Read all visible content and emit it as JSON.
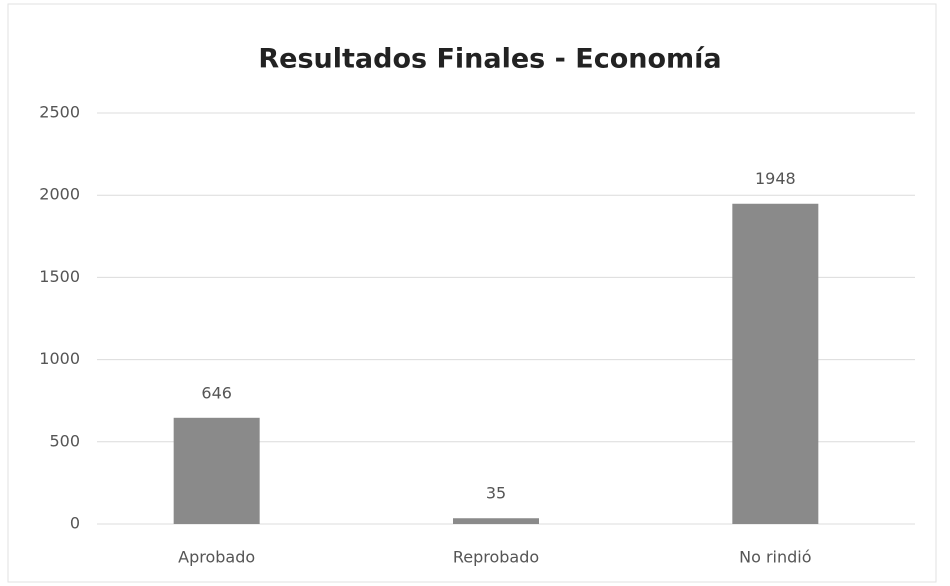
{
  "chart_data": {
    "type": "bar",
    "title": "Resultados Finales - Economía",
    "categories": [
      "Aprobado",
      "Reprobado",
      "No rindió"
    ],
    "values": [
      646,
      35,
      1948
    ],
    "color": "#8a8a8a",
    "ylim": [
      0,
      2500
    ],
    "yticks": [
      0,
      500,
      1000,
      1500,
      2000,
      2500
    ],
    "grid": true
  }
}
